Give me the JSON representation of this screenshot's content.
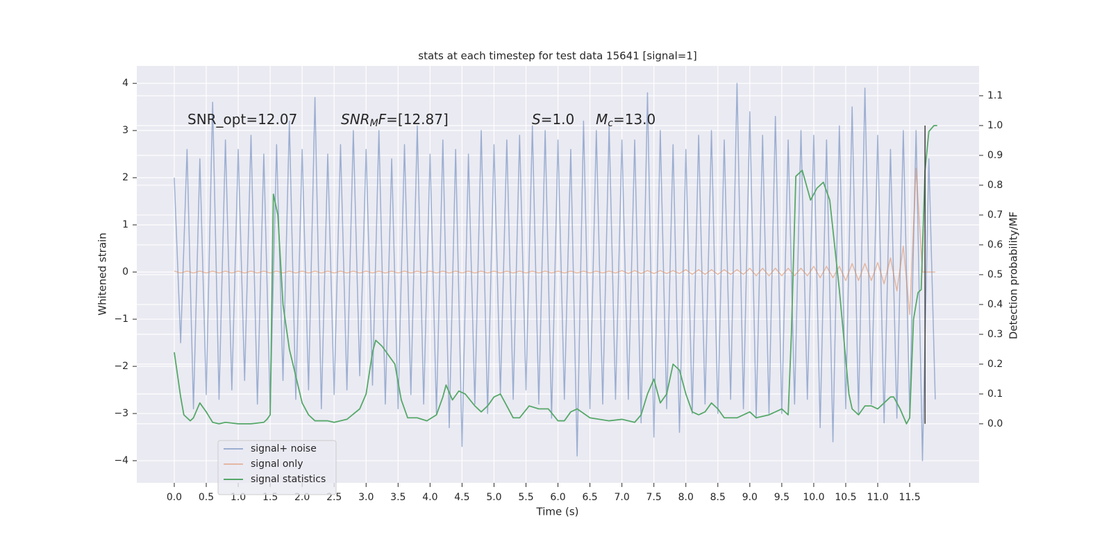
{
  "chart_data": {
    "type": "line",
    "title": "stats at each timestep for test data 15641 [signal=1]",
    "xlabel": "Time (s)",
    "ylabel": "Whitened strain",
    "y2label": "Detection probability/MF",
    "annotations": [
      [
        {
          "text": "SNR_opt=12.07"
        }
      ],
      [
        {
          "text": "SNR",
          "italic": true
        },
        {
          "text": "M",
          "italic": true,
          "sub": true
        },
        {
          "text": "F",
          "italic": true
        },
        {
          "text": "=[12.87]"
        }
      ],
      [
        {
          "text": "S",
          "italic": true
        },
        {
          "text": "=1.0"
        }
      ],
      [
        {
          "text": "M",
          "italic": true
        },
        {
          "text": "c",
          "italic": true,
          "sub": true
        },
        {
          "text": "=13.0"
        }
      ]
    ],
    "xlim": [
      -0.586,
      12.585
    ],
    "ylim": [
      -4.47,
      4.37
    ],
    "y2lim": [
      -0.198,
      1.2
    ],
    "xticks": [
      {
        "value": 0,
        "label": "0.0"
      },
      0.5,
      {
        "value": 1,
        "label": "1.0"
      },
      1.5,
      {
        "value": 2,
        "label": "2.0"
      },
      2.5,
      {
        "value": 3,
        "label": "3.0"
      },
      3.5,
      {
        "value": 4,
        "label": "4.0"
      },
      4.5,
      {
        "value": 5,
        "label": "5.0"
      },
      5.5,
      {
        "value": 6,
        "label": "6.0"
      },
      6.5,
      {
        "value": 7,
        "label": "7.0"
      },
      7.5,
      {
        "value": 8,
        "label": "8.0"
      },
      8.5,
      {
        "value": 9,
        "label": "9.0"
      },
      9.5,
      {
        "value": 10,
        "label": "10.0"
      },
      10.5,
      {
        "value": 11,
        "label": "11.0"
      },
      11.5
    ],
    "yticks": [
      {
        "value": -4,
        "label": "−4"
      },
      {
        "value": -3,
        "label": "−3"
      },
      {
        "value": -2,
        "label": "−2"
      },
      {
        "value": -1,
        "label": "−1"
      },
      0,
      1,
      2,
      3,
      4
    ],
    "y2ticks": [
      {
        "value": 0,
        "label": "0.0"
      },
      0.1,
      0.2,
      0.3,
      0.4,
      0.5,
      0.6,
      0.7,
      0.8,
      0.9,
      {
        "value": 1,
        "label": "1.0"
      },
      1.1
    ],
    "grid": true,
    "legend": "lower left",
    "vline": {
      "x": 11.74,
      "ymin": 0,
      "ymax": 1.0,
      "axis": "y2",
      "color": "#3f3f3f"
    },
    "series": [
      {
        "name": "signal+ noise",
        "color": "#4c72b0",
        "opacity": 0.5,
        "x": [
          0.0,
          0.1,
          0.2,
          0.3,
          0.4,
          0.5,
          0.6,
          0.7,
          0.8,
          0.9,
          1.0,
          1.1,
          1.2,
          1.3,
          1.4,
          1.5,
          1.6,
          1.7,
          1.8,
          1.9,
          2.0,
          2.1,
          2.2,
          2.3,
          2.4,
          2.5,
          2.6,
          2.7,
          2.8,
          2.9,
          3.0,
          3.1,
          3.2,
          3.3,
          3.4,
          3.5,
          3.6,
          3.7,
          3.8,
          3.9,
          4.0,
          4.1,
          4.2,
          4.3,
          4.4,
          4.5,
          4.6,
          4.7,
          4.8,
          4.9,
          5.0,
          5.1,
          5.2,
          5.3,
          5.4,
          5.5,
          5.6,
          5.7,
          5.8,
          5.9,
          6.0,
          6.1,
          6.2,
          6.3,
          6.4,
          6.5,
          6.6,
          6.7,
          6.8,
          6.9,
          7.0,
          7.1,
          7.2,
          7.3,
          7.4,
          7.5,
          7.6,
          7.7,
          7.8,
          7.9,
          8.0,
          8.1,
          8.2,
          8.3,
          8.4,
          8.5,
          8.6,
          8.7,
          8.8,
          8.9,
          9.0,
          9.1,
          9.2,
          9.3,
          9.4,
          9.5,
          9.6,
          9.7,
          9.8,
          9.9,
          10.0,
          10.1,
          10.2,
          10.3,
          10.4,
          10.5,
          10.6,
          10.7,
          10.8,
          10.9,
          11.0,
          11.1,
          11.2,
          11.3,
          11.4,
          11.5,
          11.6,
          11.7,
          11.8,
          11.9
        ],
        "values": [
          2.0,
          -1.5,
          2.6,
          -2.9,
          2.4,
          -2.6,
          3.6,
          -2.7,
          2.8,
          -2.5,
          2.6,
          -2.3,
          2.9,
          -2.8,
          2.5,
          -2.9,
          2.7,
          -2.3,
          3.2,
          -2.7,
          2.6,
          -2.5,
          3.7,
          -2.9,
          2.5,
          -2.6,
          2.7,
          -2.5,
          3.0,
          -2.2,
          2.6,
          -2.4,
          3.0,
          -2.8,
          2.4,
          -2.9,
          2.7,
          -2.6,
          3.1,
          -2.8,
          2.5,
          -3.0,
          2.8,
          -3.3,
          2.6,
          -3.7,
          2.5,
          -2.8,
          3.0,
          -3.0,
          2.7,
          -2.6,
          2.8,
          -2.7,
          2.9,
          -2.5,
          3.1,
          -2.8,
          3.0,
          -3.1,
          2.8,
          -2.7,
          2.6,
          -3.9,
          3.2,
          -2.9,
          3.0,
          -2.8,
          3.1,
          -2.7,
          2.8,
          -2.7,
          2.8,
          -3.2,
          3.8,
          -3.5,
          3.0,
          -2.9,
          2.7,
          -3.4,
          2.6,
          -3.0,
          2.9,
          -2.8,
          3.0,
          -3.0,
          2.8,
          -2.7,
          4.0,
          -2.9,
          3.4,
          -3.1,
          2.9,
          -3.0,
          3.3,
          -3.0,
          2.8,
          -2.8,
          3.0,
          -2.7,
          2.9,
          -3.3,
          2.8,
          -3.6,
          3.1,
          -2.9,
          3.5,
          -3.0,
          3.9,
          -2.8,
          2.9,
          -3.2,
          2.6,
          -3.1,
          3.0,
          -3.0,
          3.0,
          -4.0,
          2.4,
          -2.7
        ]
      },
      {
        "name": "signal only",
        "color": "#dd8452",
        "opacity": 0.5,
        "x": [
          0.0,
          0.1,
          0.2,
          0.3,
          0.4,
          0.5,
          0.6,
          0.7,
          0.8,
          0.9,
          1.0,
          1.1,
          1.2,
          1.3,
          1.4,
          1.5,
          1.6,
          1.7,
          1.8,
          1.9,
          2.0,
          2.1,
          2.2,
          2.3,
          2.4,
          2.5,
          2.6,
          2.7,
          2.8,
          2.9,
          3.0,
          3.1,
          3.2,
          3.3,
          3.4,
          3.5,
          3.6,
          3.7,
          3.8,
          3.9,
          4.0,
          4.1,
          4.2,
          4.3,
          4.4,
          4.5,
          4.6,
          4.7,
          4.8,
          4.9,
          5.0,
          5.1,
          5.2,
          5.3,
          5.4,
          5.5,
          5.6,
          5.7,
          5.8,
          5.9,
          6.0,
          6.1,
          6.2,
          6.3,
          6.4,
          6.5,
          6.6,
          6.7,
          6.8,
          6.9,
          7.0,
          7.1,
          7.2,
          7.3,
          7.4,
          7.5,
          7.6,
          7.7,
          7.8,
          7.9,
          8.0,
          8.1,
          8.2,
          8.3,
          8.4,
          8.5,
          8.6,
          8.7,
          8.8,
          8.9,
          9.0,
          9.1,
          9.2,
          9.3,
          9.4,
          9.5,
          9.6,
          9.7,
          9.8,
          9.9,
          10.0,
          10.1,
          10.2,
          10.3,
          10.4,
          10.5,
          10.6,
          10.7,
          10.8,
          10.9,
          11.0,
          11.1,
          11.2,
          11.3,
          11.4,
          11.5,
          11.6,
          11.7,
          11.8,
          11.9
        ],
        "values": [
          0.02,
          -0.02,
          0.02,
          -0.02,
          0.02,
          -0.02,
          0.02,
          -0.02,
          0.02,
          -0.02,
          0.02,
          -0.02,
          0.02,
          -0.02,
          0.02,
          -0.02,
          0.02,
          -0.02,
          0.02,
          -0.02,
          0.02,
          -0.02,
          0.02,
          -0.02,
          0.02,
          -0.02,
          0.02,
          -0.02,
          0.02,
          -0.02,
          0.02,
          -0.02,
          0.02,
          -0.02,
          0.02,
          -0.02,
          0.02,
          -0.02,
          0.02,
          -0.02,
          0.02,
          -0.02,
          0.02,
          -0.02,
          0.02,
          -0.02,
          0.02,
          -0.02,
          0.02,
          -0.02,
          0.02,
          -0.02,
          0.02,
          -0.02,
          0.02,
          -0.02,
          0.02,
          -0.02,
          0.02,
          -0.02,
          0.02,
          -0.02,
          0.02,
          -0.02,
          0.02,
          -0.02,
          0.02,
          -0.02,
          0.02,
          -0.02,
          0.03,
          -0.03,
          0.03,
          -0.03,
          0.03,
          -0.03,
          0.03,
          -0.03,
          0.03,
          -0.03,
          0.05,
          -0.05,
          0.05,
          -0.05,
          0.05,
          -0.05,
          0.05,
          -0.05,
          0.05,
          -0.05,
          0.08,
          -0.08,
          0.08,
          -0.08,
          0.08,
          -0.08,
          0.08,
          -0.08,
          0.08,
          -0.08,
          0.12,
          -0.12,
          0.12,
          -0.12,
          0.12,
          -0.18,
          0.18,
          -0.18,
          0.18,
          -0.18,
          0.2,
          -0.25,
          0.3,
          -0.4,
          0.55,
          -0.9,
          2.2,
          0.0,
          0.0,
          0.0
        ]
      },
      {
        "name": "signal statistics",
        "color": "#55a868",
        "axis": "y2",
        "x": [
          0.0,
          0.1,
          0.15,
          0.25,
          0.3,
          0.4,
          0.5,
          0.6,
          0.7,
          0.8,
          1.0,
          1.2,
          1.4,
          1.45,
          1.5,
          1.55,
          1.62,
          1.7,
          1.8,
          1.9,
          2.0,
          2.1,
          2.2,
          2.4,
          2.5,
          2.7,
          2.9,
          3.0,
          3.1,
          3.15,
          3.25,
          3.35,
          3.45,
          3.55,
          3.65,
          3.8,
          3.95,
          4.1,
          4.2,
          4.25,
          4.35,
          4.45,
          4.55,
          4.7,
          4.8,
          4.9,
          5.0,
          5.1,
          5.2,
          5.3,
          5.4,
          5.55,
          5.7,
          5.85,
          6.0,
          6.1,
          6.2,
          6.3,
          6.5,
          6.8,
          7.0,
          7.2,
          7.3,
          7.4,
          7.5,
          7.6,
          7.7,
          7.8,
          7.9,
          8.0,
          8.1,
          8.2,
          8.3,
          8.4,
          8.5,
          8.6,
          8.8,
          9.0,
          9.1,
          9.3,
          9.5,
          9.6,
          9.65,
          9.72,
          9.82,
          9.95,
          10.05,
          10.15,
          10.25,
          10.4,
          10.55,
          10.6,
          10.7,
          10.8,
          10.9,
          11.0,
          11.1,
          11.2,
          11.25,
          11.35,
          11.45,
          11.5,
          11.56,
          11.63,
          11.68,
          11.74,
          11.8,
          11.88,
          11.93
        ],
        "values": [
          0.24,
          0.09,
          0.03,
          0.01,
          0.02,
          0.07,
          0.04,
          0.005,
          0.0,
          0.005,
          0.0,
          0.0,
          0.005,
          0.015,
          0.03,
          0.77,
          0.7,
          0.4,
          0.25,
          0.16,
          0.07,
          0.03,
          0.01,
          0.01,
          0.005,
          0.015,
          0.05,
          0.1,
          0.24,
          0.28,
          0.26,
          0.23,
          0.2,
          0.08,
          0.02,
          0.02,
          0.01,
          0.03,
          0.09,
          0.13,
          0.08,
          0.11,
          0.1,
          0.06,
          0.04,
          0.06,
          0.09,
          0.1,
          0.06,
          0.02,
          0.02,
          0.06,
          0.05,
          0.05,
          0.01,
          0.01,
          0.04,
          0.05,
          0.02,
          0.01,
          0.015,
          0.005,
          0.03,
          0.1,
          0.15,
          0.07,
          0.1,
          0.2,
          0.18,
          0.1,
          0.04,
          0.03,
          0.04,
          0.07,
          0.05,
          0.02,
          0.02,
          0.04,
          0.02,
          0.03,
          0.05,
          0.03,
          0.3,
          0.83,
          0.85,
          0.75,
          0.79,
          0.81,
          0.75,
          0.45,
          0.1,
          0.05,
          0.03,
          0.06,
          0.06,
          0.05,
          0.07,
          0.09,
          0.09,
          0.05,
          0.0,
          0.02,
          0.35,
          0.44,
          0.45,
          0.85,
          0.98,
          1.0,
          1.0
        ]
      }
    ]
  }
}
